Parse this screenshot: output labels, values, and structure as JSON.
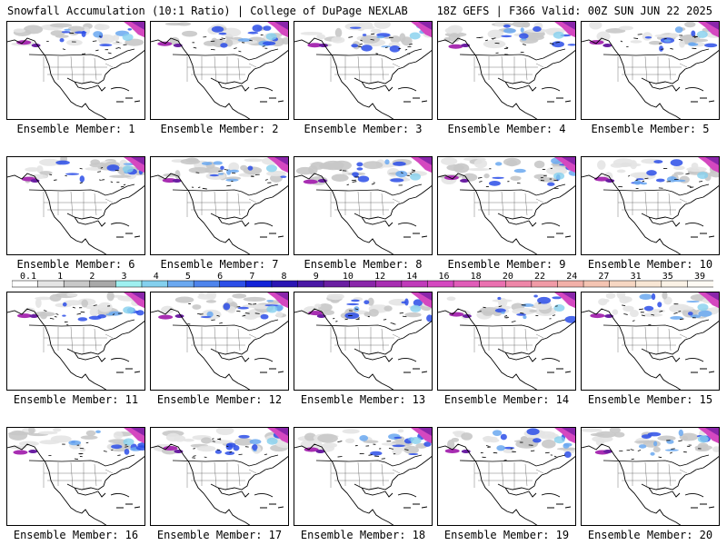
{
  "header": {
    "title_left": "Snowfall Accumulation (10:1 Ratio) | College of DuPage NEXLAB",
    "title_right": "18Z GEFS | F366 Valid: 00Z SUN JUN 22 2025"
  },
  "members": [
    {
      "label": "Ensemble Member: 1"
    },
    {
      "label": "Ensemble Member: 2"
    },
    {
      "label": "Ensemble Member: 3"
    },
    {
      "label": "Ensemble Member: 4"
    },
    {
      "label": "Ensemble Member: 5"
    },
    {
      "label": "Ensemble Member: 6"
    },
    {
      "label": "Ensemble Member: 7"
    },
    {
      "label": "Ensemble Member: 8"
    },
    {
      "label": "Ensemble Member: 9"
    },
    {
      "label": "Ensemble Member: 10"
    },
    {
      "label": "Ensemble Member: 11"
    },
    {
      "label": "Ensemble Member: 12"
    },
    {
      "label": "Ensemble Member: 13"
    },
    {
      "label": "Ensemble Member: 14"
    },
    {
      "label": "Ensemble Member: 15"
    },
    {
      "label": "Ensemble Member: 16"
    },
    {
      "label": "Ensemble Member: 17"
    },
    {
      "label": "Ensemble Member: 18"
    },
    {
      "label": "Ensemble Member: 19"
    },
    {
      "label": "Ensemble Member: 20"
    }
  ],
  "colorbar": {
    "labels": [
      "0.1",
      "1",
      "2",
      "3",
      "4",
      "5",
      "6",
      "7",
      "8",
      "9",
      "10",
      "12",
      "14",
      "16",
      "18",
      "20",
      "22",
      "24",
      "27",
      "31",
      "35",
      "39"
    ],
    "colors": [
      "#ffffff",
      "#e4e4e4",
      "#c8c8c8",
      "#a8a8a8",
      "#9ef0f0",
      "#84d0ee",
      "#6aa8f0",
      "#4e84ec",
      "#2c4ee8",
      "#1222d8",
      "#2a14b4",
      "#4a18a6",
      "#6a1ea2",
      "#8a26aa",
      "#a82eb2",
      "#c03aba",
      "#d448c0",
      "#e05cb8",
      "#ea70b0",
      "#ee86a8",
      "#f09aa6",
      "#f2b0a8",
      "#f4c4b2",
      "#f6d6c2",
      "#f8e6d4",
      "#fbf2e6",
      "#fefaf4"
    ]
  }
}
